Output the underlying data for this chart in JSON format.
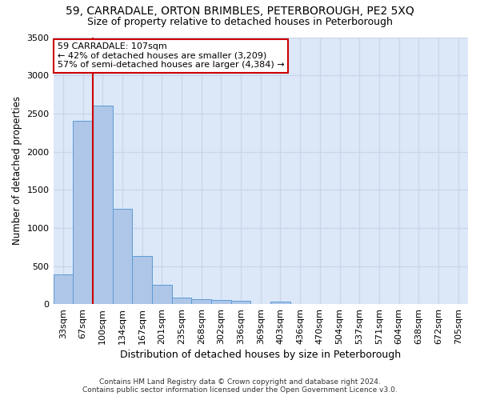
{
  "title_line1": "59, CARRADALE, ORTON BRIMBLES, PETERBOROUGH, PE2 5XQ",
  "title_line2": "Size of property relative to detached houses in Peterborough",
  "xlabel": "Distribution of detached houses by size in Peterborough",
  "ylabel": "Number of detached properties",
  "footer_line1": "Contains HM Land Registry data © Crown copyright and database right 2024.",
  "footer_line2": "Contains public sector information licensed under the Open Government Licence v3.0.",
  "categories": [
    "33sqm",
    "67sqm",
    "100sqm",
    "134sqm",
    "167sqm",
    "201sqm",
    "235sqm",
    "268sqm",
    "302sqm",
    "336sqm",
    "369sqm",
    "403sqm",
    "436sqm",
    "470sqm",
    "504sqm",
    "537sqm",
    "571sqm",
    "604sqm",
    "638sqm",
    "672sqm",
    "705sqm"
  ],
  "values": [
    390,
    2400,
    2600,
    1250,
    630,
    255,
    90,
    60,
    55,
    45,
    0,
    30,
    0,
    0,
    0,
    0,
    0,
    0,
    0,
    0,
    0
  ],
  "bar_color": "#aec6e8",
  "bar_edge_color": "#5b9bd5",
  "annotation_line1": "59 CARRADALE: 107sqm",
  "annotation_line2": "← 42% of detached houses are smaller (3,209)",
  "annotation_line3": "57% of semi-detached houses are larger (4,384) →",
  "annotation_box_color": "#ffffff",
  "annotation_box_edge_color": "#cc0000",
  "vline_color": "#cc0000",
  "vline_x_index": 2,
  "ylim": [
    0,
    3500
  ],
  "yticks": [
    0,
    500,
    1000,
    1500,
    2000,
    2500,
    3000,
    3500
  ],
  "grid_color": "#c8d4e8",
  "background_color": "#dce8f8",
  "title_fontsize": 10,
  "subtitle_fontsize": 9,
  "tick_fontsize": 8,
  "ylabel_fontsize": 8.5,
  "xlabel_fontsize": 9,
  "annotation_fontsize": 8
}
